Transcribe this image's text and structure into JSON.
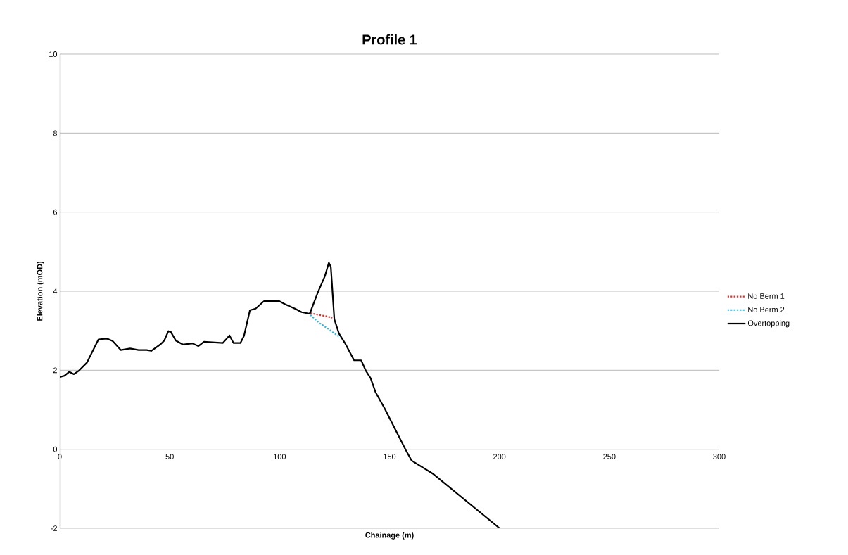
{
  "chart_data": {
    "type": "line",
    "title": "Profile 1",
    "xlabel": "Chainage (m)",
    "ylabel": "Elevation (mOD)",
    "xlim": [
      0,
      300
    ],
    "ylim": [
      -2,
      10
    ],
    "xticks": [
      0,
      50,
      100,
      150,
      200,
      250,
      300
    ],
    "yticks": [
      -2,
      0,
      2,
      4,
      6,
      8,
      10
    ],
    "grid": "y",
    "legend": "right",
    "series": [
      {
        "name": "No Berm 1",
        "color": "#e03030",
        "line_style": "dotted",
        "x": [
          114,
          116,
          120,
          124
        ],
        "values": [
          3.45,
          3.42,
          3.38,
          3.33
        ]
      },
      {
        "name": "No Berm 2",
        "color": "#30b8e0",
        "line_style": "dotted",
        "x": [
          114,
          118,
          122,
          127
        ],
        "values": [
          3.4,
          3.2,
          3.05,
          2.85
        ]
      },
      {
        "name": "Overtopping",
        "color": "#000000",
        "line_style": "solid",
        "x": [
          0,
          2.1,
          4.3,
          6.4,
          8.5,
          12.3,
          15,
          17.6,
          21.4,
          24,
          27.8,
          32,
          35.8,
          39.5,
          41.6,
          45.9,
          47.5,
          49.4,
          50.5,
          52.8,
          56,
          60.3,
          63,
          65.6,
          74.2,
          77.2,
          79,
          82.2,
          83.8,
          86.5,
          89.1,
          92.9,
          99.8,
          102.5,
          107.3,
          110,
          113.7,
          117.4,
          120.6,
          122.4,
          123.3,
          124.9,
          127,
          129.7,
          133.9,
          137.1,
          139.3,
          141.4,
          143.6,
          147.8,
          152.1,
          157.4,
          160.1,
          170,
          200.1
        ],
        "values": [
          1.83,
          1.86,
          1.96,
          1.9,
          1.98,
          2.19,
          2.49,
          2.78,
          2.8,
          2.74,
          2.51,
          2.55,
          2.51,
          2.51,
          2.49,
          2.66,
          2.75,
          2.99,
          2.97,
          2.75,
          2.65,
          2.68,
          2.61,
          2.72,
          2.69,
          2.88,
          2.69,
          2.69,
          2.87,
          3.52,
          3.56,
          3.75,
          3.75,
          3.67,
          3.55,
          3.47,
          3.43,
          3.97,
          4.38,
          4.72,
          4.62,
          3.29,
          2.93,
          2.69,
          2.25,
          2.25,
          1.98,
          1.8,
          1.45,
          1.03,
          0.56,
          -0.02,
          -0.29,
          -0.63,
          -2
        ]
      }
    ]
  }
}
